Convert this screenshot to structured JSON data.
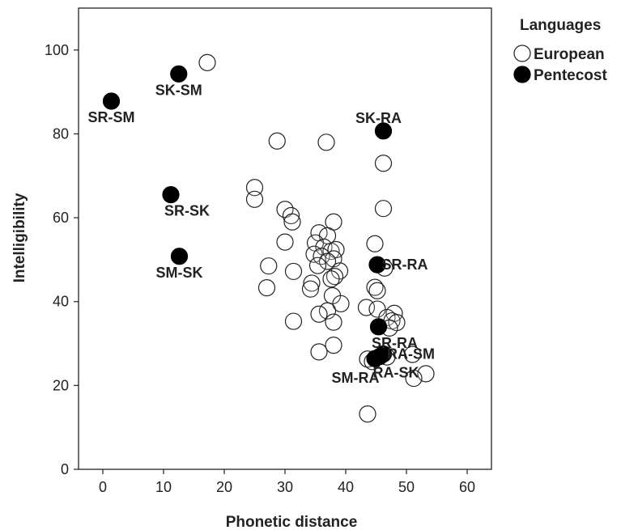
{
  "chart_data": {
    "type": "scatter",
    "title": "",
    "xlabel": "Phonetic distance",
    "ylabel": "Intelligibility",
    "xlim": [
      -4,
      64
    ],
    "ylim": [
      0,
      110
    ],
    "xticks": [
      0,
      10,
      20,
      30,
      40,
      50,
      60
    ],
    "yticks": [
      0,
      20,
      40,
      60,
      80,
      100
    ],
    "grid": false,
    "legend": {
      "title": "Languages",
      "placement": "top-right outside",
      "entries": [
        "European",
        "Pentecost"
      ]
    },
    "series": [
      {
        "name": "European",
        "marker": "open-circle",
        "points": [
          {
            "x": 17.2,
            "y": 97.0
          },
          {
            "x": 28.7,
            "y": 78.3
          },
          {
            "x": 36.8,
            "y": 78.0
          },
          {
            "x": 46.2,
            "y": 73.0
          },
          {
            "x": 25.0,
            "y": 67.2
          },
          {
            "x": 25.0,
            "y": 64.4
          },
          {
            "x": 46.2,
            "y": 62.2
          },
          {
            "x": 30.0,
            "y": 62.0
          },
          {
            "x": 31.0,
            "y": 60.5
          },
          {
            "x": 31.2,
            "y": 59.0
          },
          {
            "x": 38.0,
            "y": 59.0
          },
          {
            "x": 35.6,
            "y": 56.4
          },
          {
            "x": 37.0,
            "y": 55.7
          },
          {
            "x": 30.0,
            "y": 54.2
          },
          {
            "x": 35.0,
            "y": 54.0
          },
          {
            "x": 44.8,
            "y": 53.8
          },
          {
            "x": 36.4,
            "y": 53.0
          },
          {
            "x": 37.6,
            "y": 52.0
          },
          {
            "x": 38.4,
            "y": 52.4
          },
          {
            "x": 34.8,
            "y": 51.3
          },
          {
            "x": 36.0,
            "y": 50.8
          },
          {
            "x": 38.0,
            "y": 50.2
          },
          {
            "x": 37.0,
            "y": 49.6
          },
          {
            "x": 27.3,
            "y": 48.5
          },
          {
            "x": 35.4,
            "y": 48.6
          },
          {
            "x": 46.4,
            "y": 48.0
          },
          {
            "x": 31.4,
            "y": 47.2
          },
          {
            "x": 39.0,
            "y": 47.3
          },
          {
            "x": 38.2,
            "y": 46.0
          },
          {
            "x": 37.6,
            "y": 45.4
          },
          {
            "x": 34.4,
            "y": 44.4
          },
          {
            "x": 34.2,
            "y": 43.0
          },
          {
            "x": 27.0,
            "y": 43.3
          },
          {
            "x": 44.8,
            "y": 43.4
          },
          {
            "x": 45.2,
            "y": 42.6
          },
          {
            "x": 37.8,
            "y": 41.4
          },
          {
            "x": 39.2,
            "y": 39.5
          },
          {
            "x": 43.4,
            "y": 38.6
          },
          {
            "x": 45.2,
            "y": 38.2
          },
          {
            "x": 37.0,
            "y": 37.8
          },
          {
            "x": 35.6,
            "y": 37.0
          },
          {
            "x": 48.0,
            "y": 37.2
          },
          {
            "x": 46.8,
            "y": 36.2
          },
          {
            "x": 47.6,
            "y": 35.4
          },
          {
            "x": 31.4,
            "y": 35.3
          },
          {
            "x": 38.0,
            "y": 35.1
          },
          {
            "x": 48.4,
            "y": 35.0
          },
          {
            "x": 47.2,
            "y": 33.7
          },
          {
            "x": 38.0,
            "y": 29.6
          },
          {
            "x": 35.6,
            "y": 28.0
          },
          {
            "x": 51.0,
            "y": 27.4
          },
          {
            "x": 43.6,
            "y": 26.3
          },
          {
            "x": 44.4,
            "y": 25.7
          },
          {
            "x": 46.8,
            "y": 26.8
          },
          {
            "x": 53.2,
            "y": 22.8
          },
          {
            "x": 51.2,
            "y": 21.7
          },
          {
            "x": 43.6,
            "y": 13.2
          }
        ]
      },
      {
        "name": "Pentecost",
        "marker": "filled-circle",
        "points": [
          {
            "x": 12.5,
            "y": 94.3,
            "label": "SK-SM",
            "label_pos": "below"
          },
          {
            "x": 1.4,
            "y": 87.8,
            "label": "SR-SM",
            "label_pos": "below"
          },
          {
            "x": 46.2,
            "y": 80.7,
            "label": "SK-RA",
            "label_pos": "above-left"
          },
          {
            "x": 11.2,
            "y": 65.5,
            "label": "SR-SK",
            "label_pos": "below-right"
          },
          {
            "x": 12.6,
            "y": 50.8,
            "label": "SM-SK",
            "label_pos": "below"
          },
          {
            "x": 45.2,
            "y": 48.8,
            "label": "SR-RA",
            "label_pos": "right"
          },
          {
            "x": 45.4,
            "y": 34.0,
            "label": "SR-RA",
            "label_pos": "below-right"
          },
          {
            "x": 46.2,
            "y": 27.5,
            "label": "RA-SM",
            "label_pos": "right"
          },
          {
            "x": 44.8,
            "y": 26.4,
            "label": "SM-RA",
            "label_pos": "below-left"
          },
          {
            "x": 45.6,
            "y": 26.9,
            "label": "RA-SK",
            "label_pos": "below-right"
          }
        ]
      }
    ]
  }
}
